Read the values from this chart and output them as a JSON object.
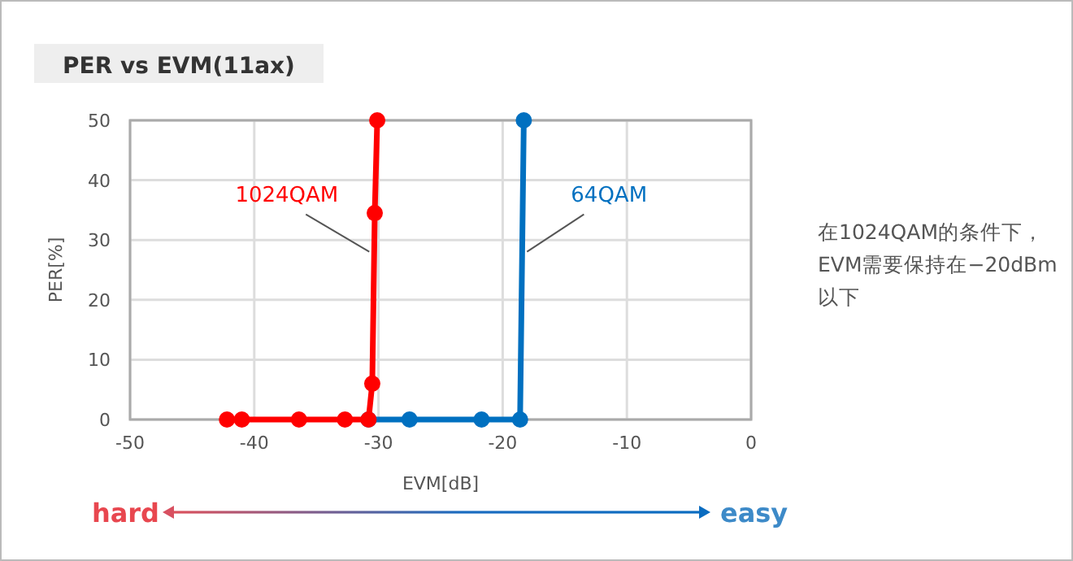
{
  "chart_data": {
    "type": "line",
    "title": "PER vs EVM(11ax)",
    "xlabel": "EVM[dB]",
    "ylabel": "PER[%]",
    "xlim": [
      -50,
      0
    ],
    "xticks": [
      -50,
      -40,
      -30,
      -20,
      -10,
      0
    ],
    "ylim": [
      0,
      50
    ],
    "yticks": [
      0,
      10,
      20,
      30,
      40,
      50
    ],
    "grid": true,
    "marker": "circle",
    "series": [
      {
        "name": "1024QAM",
        "color": "#ff0000",
        "x": [
          -42.2,
          -41,
          -36.4,
          -32.7,
          -30.8,
          -30.5,
          -30.3,
          -30.1
        ],
        "values": [
          0,
          0,
          0,
          0,
          0,
          6,
          34.5,
          50
        ]
      },
      {
        "name": "64QAM",
        "color": "#0070c0",
        "x": [
          -30.8,
          -27.5,
          -21.7,
          -18.6,
          -18.3
        ],
        "values": [
          0,
          0,
          0,
          0,
          50
        ]
      }
    ],
    "annotations": [
      "在1024QAM的条件下，EVM需要保持在−20dBm以下",
      "hard",
      "easy"
    ]
  }
}
